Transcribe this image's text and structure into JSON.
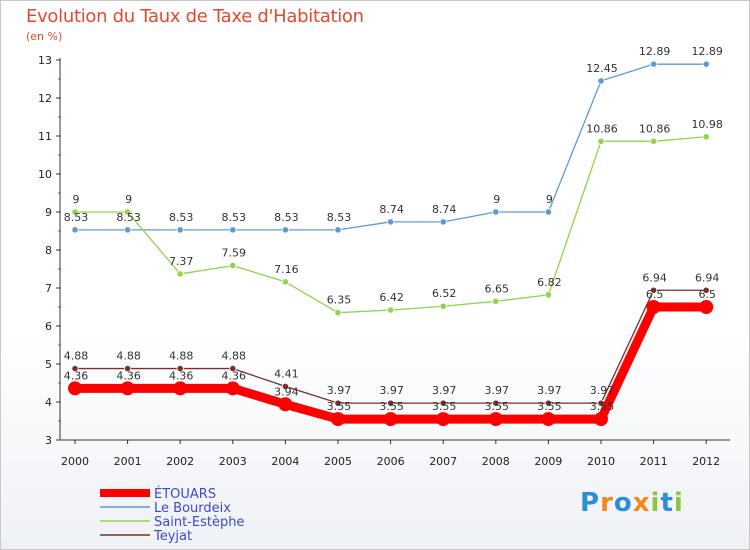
{
  "chart_data": {
    "type": "line",
    "title": "Evolution du Taux de Taxe d'Habitation",
    "subtitle": "(en %)",
    "x": [
      "2000",
      "2001",
      "2002",
      "2003",
      "2004",
      "2005",
      "2006",
      "2007",
      "2008",
      "2009",
      "2010",
      "2011",
      "2012"
    ],
    "ylim": [
      3,
      13
    ],
    "yticks": [
      3,
      4,
      5,
      6,
      7,
      8,
      9,
      10,
      11,
      12,
      13
    ],
    "grid": false,
    "legend_position": "bottom-left",
    "series": [
      {
        "name": "ÉTOUARS",
        "color": "#ff0000",
        "values": [
          4.36,
          4.36,
          4.36,
          4.36,
          3.94,
          3.55,
          3.55,
          3.55,
          3.55,
          3.55,
          3.55,
          6.5,
          6.5
        ],
        "labels": [
          "4.36",
          "4.36",
          "4.36",
          "4.36",
          "3.94",
          "3.55",
          "3.55",
          "3.55",
          "3.55",
          "3.55",
          "3.55",
          "6.5",
          "6.5"
        ]
      },
      {
        "name": "Le Bourdeix",
        "color": "#5b9bd5",
        "values": [
          8.53,
          8.53,
          8.53,
          8.53,
          8.53,
          8.53,
          8.74,
          8.74,
          9,
          9,
          12.45,
          12.89,
          12.89
        ],
        "labels": [
          "8.53",
          "8.53",
          "8.53",
          "8.53",
          "8.53",
          "8.53",
          "8.74",
          "8.74",
          "9",
          "9",
          "12.45",
          "12.89",
          "12.89"
        ]
      },
      {
        "name": "Saint-Estèphe",
        "color": "#8fd44a",
        "values": [
          9,
          9,
          7.37,
          7.59,
          7.16,
          6.35,
          6.42,
          6.52,
          6.65,
          6.82,
          10.86,
          10.86,
          10.98
        ],
        "labels": [
          "9",
          "9",
          "7.37",
          "7.59",
          "7.16",
          "6.35",
          "6.42",
          "6.52",
          "6.65",
          "6.82",
          "10.86",
          "10.86",
          "10.98"
        ]
      },
      {
        "name": "Teyjat",
        "color": "#7a2e2e",
        "values": [
          4.88,
          4.88,
          4.88,
          4.88,
          4.41,
          3.97,
          3.97,
          3.97,
          3.97,
          3.97,
          3.97,
          6.94,
          6.94
        ],
        "labels": [
          "4.88",
          "4.88",
          "4.88",
          "4.88",
          "4.41",
          "3.97",
          "3.97",
          "3.97",
          "3.97",
          "3.97",
          "3.97",
          "6.94",
          "6.94"
        ]
      }
    ]
  },
  "logo": {
    "letters": [
      "P",
      "r",
      "o",
      "x",
      "i",
      "t",
      "i"
    ],
    "colors": [
      "#2a8fd8",
      "#f08a1c",
      "#2a8fd8",
      "#f08a1c",
      "#8cc63f",
      "#2a8fd8",
      "#8cc63f"
    ]
  }
}
